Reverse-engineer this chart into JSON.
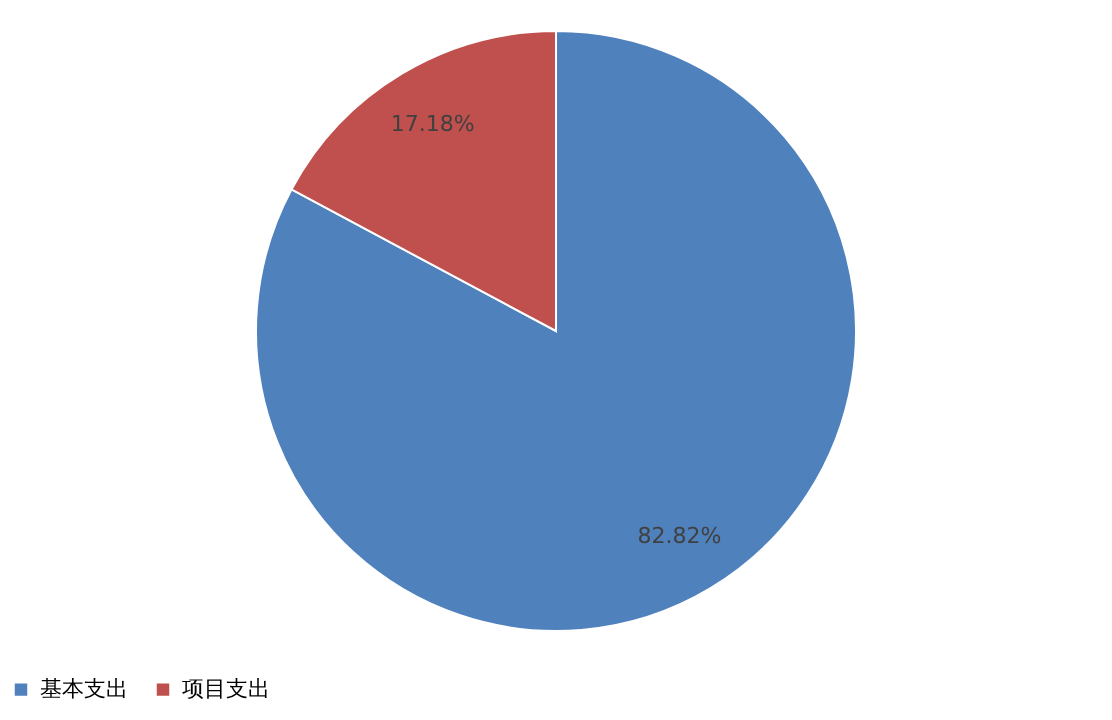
{
  "chart_data": {
    "type": "pie",
    "categories": [
      "基本支出",
      "项目支出"
    ],
    "values": [
      82.82,
      17.18
    ],
    "colors": [
      "#4f81bd",
      "#c0504d"
    ],
    "value_labels": [
      "82.82%",
      "17.18%"
    ],
    "legend": "bottom"
  }
}
